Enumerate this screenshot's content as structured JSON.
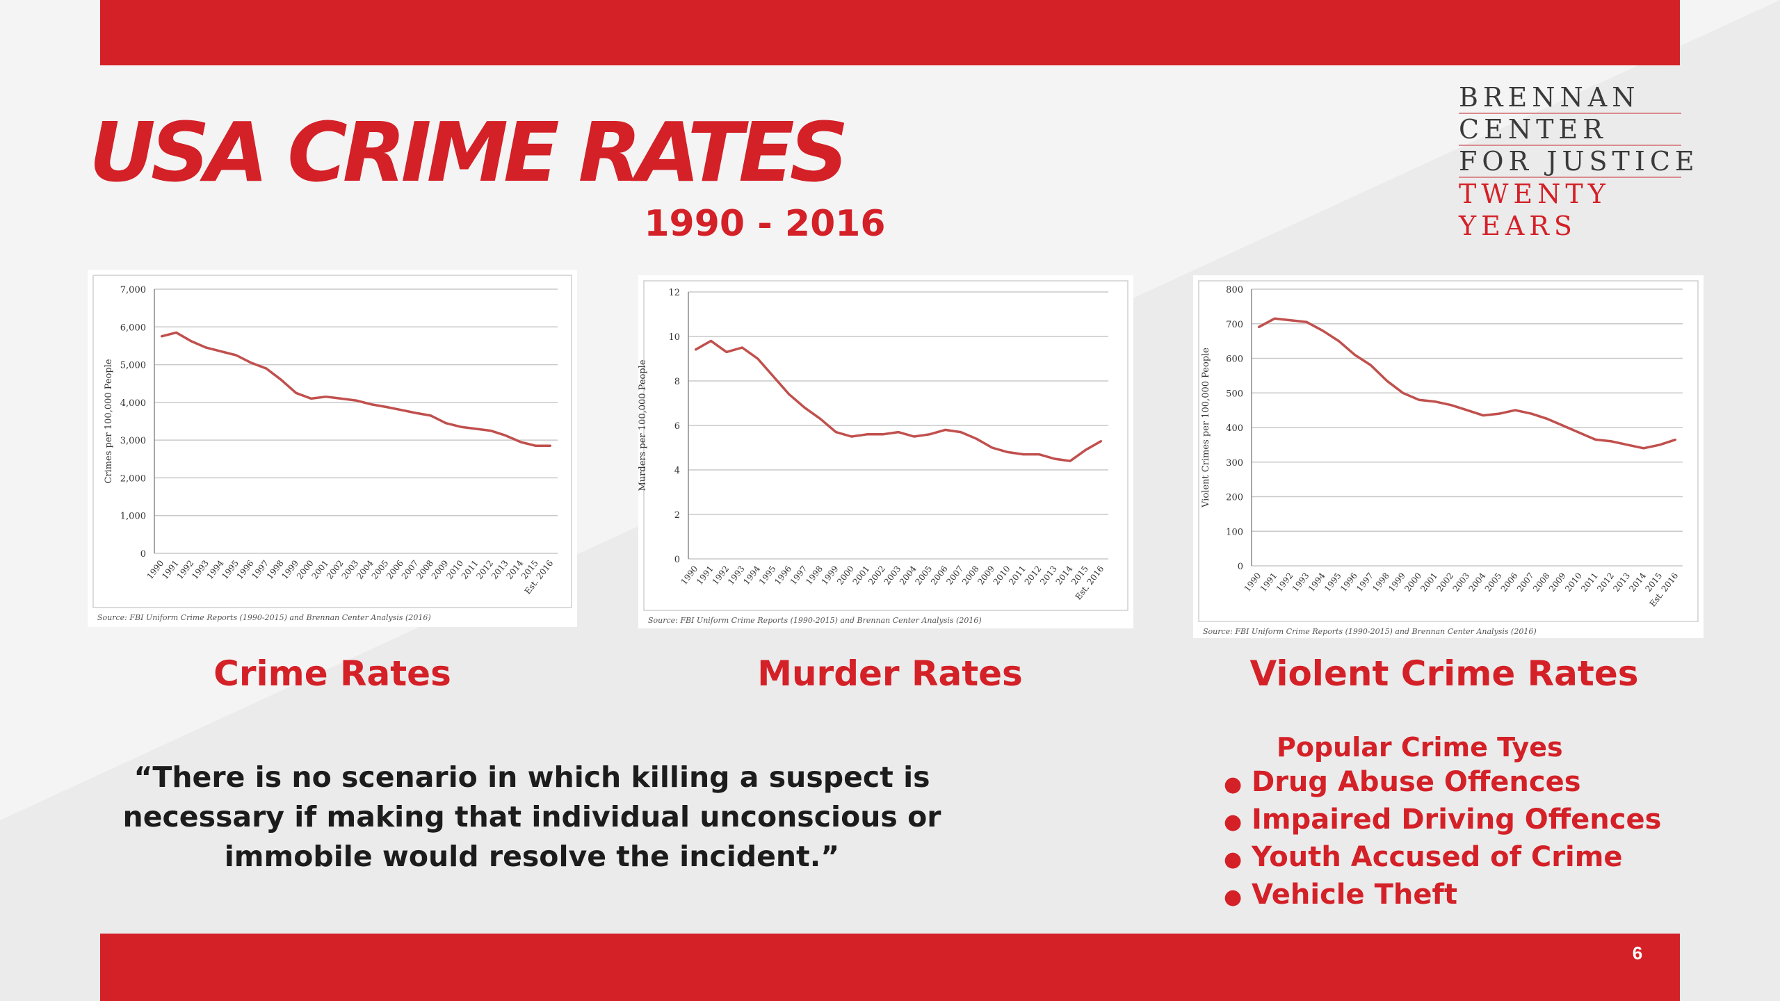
{
  "slide": {
    "title": "USA CRIME RATES",
    "subtitle": "1990 - 2016",
    "page_number": "6"
  },
  "logo": {
    "lines": [
      "BRENNAN",
      "CENTER",
      "FOR JUSTICE",
      "TWENTY",
      "YEARS"
    ]
  },
  "colors": {
    "accent": "#d42027",
    "line": "#c0504d",
    "text_dark": "#1c1c1c"
  },
  "chart_captions": [
    "Crime Rates",
    "Murder Rates",
    "Violent Crime Rates"
  ],
  "quote": "“There is no scenario in which killing a suspect is necessary if making that individual unconscious or immobile would resolve the incident.”",
  "crime_types": {
    "heading": "Popular Crime Tyes",
    "items": [
      "Drug Abuse Offences",
      "Impaired Driving Offences",
      "Youth Accused of Crime",
      "Vehicle Theft"
    ]
  },
  "chart_data": [
    {
      "type": "line",
      "ylabel": "Crimes per 100,000 People",
      "ylim": [
        0,
        7000
      ],
      "yticks": [
        "0",
        "1,000",
        "2,000",
        "3,000",
        "4,000",
        "5,000",
        "6,000",
        "7,000"
      ],
      "categories": [
        "1990",
        "1991",
        "1992",
        "1993",
        "1994",
        "1995",
        "1996",
        "1997",
        "1998",
        "1999",
        "2000",
        "2001",
        "2002",
        "2003",
        "2004",
        "2005",
        "2006",
        "2007",
        "2008",
        "2009",
        "2010",
        "2011",
        "2012",
        "2013",
        "2014",
        "2015",
        "Est. 2016"
      ],
      "values": [
        5750,
        5850,
        5620,
        5450,
        5350,
        5250,
        5050,
        4900,
        4600,
        4250,
        4100,
        4150,
        4100,
        4050,
        3950,
        3880,
        3800,
        3720,
        3650,
        3450,
        3350,
        3300,
        3250,
        3120,
        2950,
        2850,
        2850
      ],
      "source": "Source: FBI Uniform Crime Reports (1990-2015) and Brennan Center Analysis (2016)",
      "grid": true,
      "legend": "none"
    },
    {
      "type": "line",
      "ylabel": "Murders per 100,000 People",
      "ylim": [
        0,
        12
      ],
      "yticks": [
        "0",
        "2",
        "4",
        "6",
        "8",
        "10",
        "12"
      ],
      "categories": [
        "1990",
        "1991",
        "1992",
        "1993",
        "1994",
        "1995",
        "1996",
        "1997",
        "1998",
        "1999",
        "2000",
        "2001",
        "2002",
        "2003",
        "2004",
        "2005",
        "2006",
        "2007",
        "2008",
        "2009",
        "2010",
        "2011",
        "2012",
        "2013",
        "2014",
        "2015",
        "Est. 2016"
      ],
      "values": [
        9.4,
        9.8,
        9.3,
        9.5,
        9.0,
        8.2,
        7.4,
        6.8,
        6.3,
        5.7,
        5.5,
        5.6,
        5.6,
        5.7,
        5.5,
        5.6,
        5.8,
        5.7,
        5.4,
        5.0,
        4.8,
        4.7,
        4.7,
        4.5,
        4.4,
        4.9,
        5.3
      ],
      "source": "Source: FBI Uniform Crime Reports (1990-2015) and Brennan Center Analysis (2016)",
      "grid": true,
      "legend": "none"
    },
    {
      "type": "line",
      "ylabel": "Violent Crimes per 100,000 People",
      "ylim": [
        0,
        800
      ],
      "yticks": [
        "0",
        "100",
        "200",
        "300",
        "400",
        "500",
        "600",
        "700",
        "800"
      ],
      "categories": [
        "1990",
        "1991",
        "1992",
        "1993",
        "1994",
        "1995",
        "1996",
        "1997",
        "1998",
        "1999",
        "2000",
        "2001",
        "2002",
        "2003",
        "2004",
        "2005",
        "2006",
        "2007",
        "2008",
        "2009",
        "2010",
        "2011",
        "2012",
        "2013",
        "2014",
        "2015",
        "Est. 2016"
      ],
      "values": [
        690,
        715,
        710,
        705,
        680,
        650,
        610,
        580,
        535,
        500,
        480,
        475,
        465,
        450,
        435,
        440,
        450,
        440,
        425,
        405,
        385,
        365,
        360,
        350,
        340,
        350,
        365
      ],
      "source": "Source: FBI Uniform Crime Reports (1990-2015) and Brennan Center Analysis (2016)",
      "grid": true,
      "legend": "none"
    }
  ]
}
